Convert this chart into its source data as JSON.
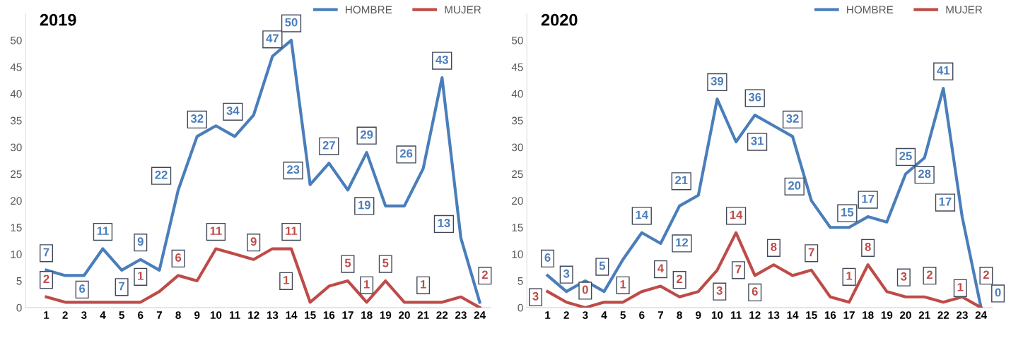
{
  "chart_data": [
    {
      "type": "line",
      "title": "2019",
      "categories": [
        "1",
        "2",
        "3",
        "4",
        "5",
        "6",
        "7",
        "8",
        "9",
        "10",
        "11",
        "12",
        "13",
        "14",
        "15",
        "16",
        "17",
        "18",
        "19",
        "20",
        "21",
        "22",
        "23",
        "24"
      ],
      "ylim": [
        0,
        55
      ],
      "yticks": [
        0,
        5,
        10,
        15,
        20,
        25,
        30,
        35,
        40,
        45,
        50
      ],
      "grid": false,
      "legend": "top right",
      "marker": "none",
      "line_style": "solid",
      "series": [
        {
          "name": "HOMBRE",
          "color": "#4a7ebb",
          "values": [
            7,
            6,
            6,
            11,
            7,
            9,
            7,
            22,
            32,
            34,
            32,
            36,
            47,
            50,
            23,
            27,
            22,
            29,
            19,
            19,
            26,
            43,
            13,
            1
          ],
          "value_labels": [
            "7",
            "6",
            null,
            "11",
            "7",
            "9",
            null,
            "22",
            "32",
            "34",
            null,
            null,
            "47",
            "50",
            "23",
            "27",
            null,
            "29",
            "19",
            null,
            "26",
            "43",
            "13",
            null
          ]
        },
        {
          "name": "MUJER",
          "color": "#be4b48",
          "values": [
            2,
            1,
            1,
            1,
            1,
            1,
            3,
            6,
            5,
            11,
            10,
            9,
            11,
            11,
            1,
            4,
            5,
            1,
            5,
            1,
            1,
            1,
            2,
            0
          ],
          "value_labels": [
            "2",
            null,
            null,
            null,
            null,
            "1",
            null,
            "6",
            null,
            "11",
            null,
            "9",
            null,
            "11",
            "1",
            null,
            "5",
            "1",
            "5",
            null,
            "1",
            null,
            "2",
            null
          ]
        }
      ]
    },
    {
      "type": "line",
      "title": "2020",
      "categories": [
        "1",
        "2",
        "3",
        "4",
        "5",
        "6",
        "7",
        "8",
        "9",
        "10",
        "11",
        "12",
        "13",
        "14",
        "15",
        "16",
        "17",
        "18",
        "19",
        "20",
        "21",
        "22",
        "23",
        "24"
      ],
      "ylim": [
        0,
        55
      ],
      "yticks": [
        0,
        5,
        10,
        15,
        20,
        25,
        30,
        35,
        40,
        45,
        50
      ],
      "grid": false,
      "legend": "top right",
      "marker": "none",
      "line_style": "solid",
      "series": [
        {
          "name": "HOMBRE",
          "color": "#4a7ebb",
          "values": [
            6,
            3,
            5,
            3,
            9,
            14,
            12,
            19,
            21,
            39,
            31,
            36,
            34,
            32,
            20,
            15,
            15,
            17,
            16,
            25,
            28,
            41,
            17,
            0
          ],
          "value_labels": [
            "6",
            "3",
            "5",
            null,
            null,
            "14",
            "12",
            null,
            "21",
            "39",
            "31",
            "36",
            null,
            "32",
            "20",
            "15",
            null,
            "17",
            null,
            "25",
            "28",
            "41",
            "17",
            "0"
          ]
        },
        {
          "name": "MUJER",
          "color": "#be4b48",
          "values": [
            3,
            1,
            0,
            1,
            1,
            3,
            4,
            2,
            3,
            7,
            14,
            6,
            8,
            6,
            7,
            2,
            1,
            8,
            3,
            2,
            2,
            1,
            2,
            0
          ],
          "value_labels": [
            "3",
            null,
            "0",
            null,
            "1",
            null,
            "4",
            "2",
            "3",
            "7",
            "14",
            "6",
            "8",
            null,
            "7",
            null,
            "1",
            "8",
            "3",
            "2",
            null,
            "1",
            "2",
            null
          ]
        }
      ]
    }
  ]
}
